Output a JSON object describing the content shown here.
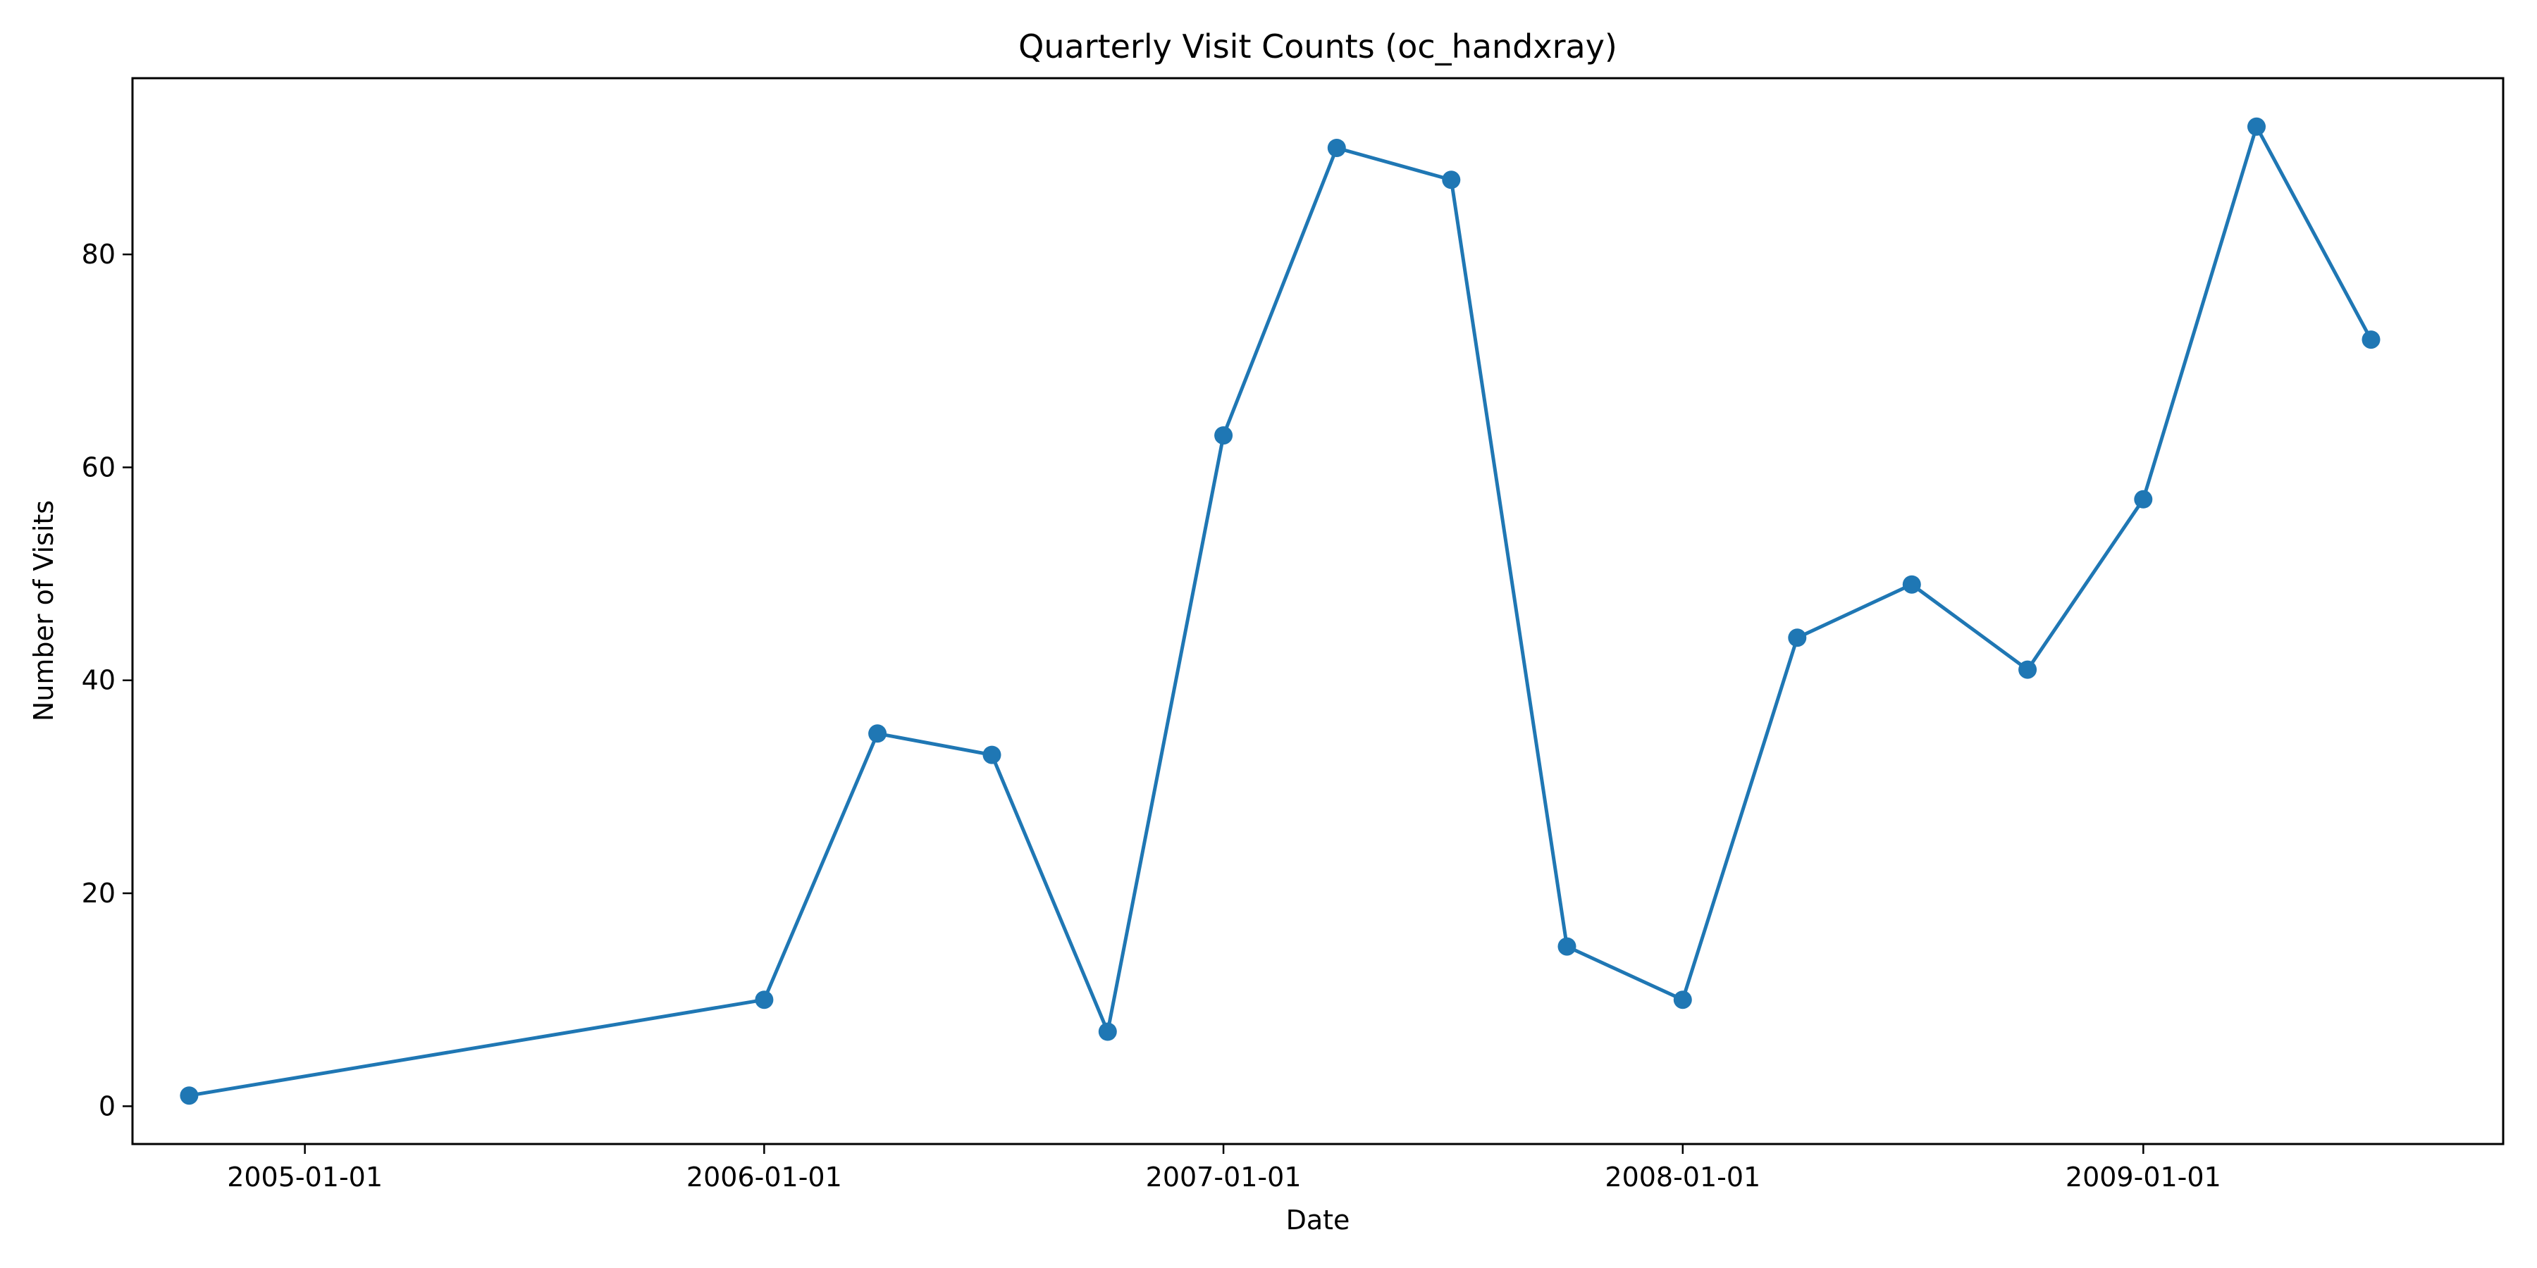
{
  "chart_data": {
    "type": "line",
    "title": "Quarterly Visit Counts (oc_handxray)",
    "xlabel": "Date",
    "ylabel": "Number of Visits",
    "x_scale": "date",
    "xlim": [
      "2004-08-17",
      "2009-10-14"
    ],
    "ylim": [
      -3.55,
      96.55
    ],
    "grid": false,
    "legend": "none",
    "x_ticks": [
      "2005-01-01",
      "2006-01-01",
      "2007-01-01",
      "2008-01-01",
      "2009-01-01"
    ],
    "y_ticks": [
      0,
      20,
      40,
      60,
      80
    ],
    "colors": {
      "series": "#1f77b4",
      "axes": "#000000",
      "background": "#ffffff"
    },
    "marker": "circle",
    "series": [
      {
        "x": [
          "2004-10-01",
          "2006-01-01",
          "2006-04-01",
          "2006-07-01",
          "2006-10-01",
          "2007-01-01",
          "2007-04-01",
          "2007-07-01",
          "2007-10-01",
          "2008-01-01",
          "2008-04-01",
          "2008-07-01",
          "2008-10-01",
          "2009-01-01",
          "2009-04-01",
          "2009-07-01"
        ],
        "y": [
          1,
          10,
          35,
          33,
          7,
          63,
          90,
          87,
          15,
          10,
          44,
          49,
          41,
          57,
          92,
          72
        ]
      }
    ]
  }
}
